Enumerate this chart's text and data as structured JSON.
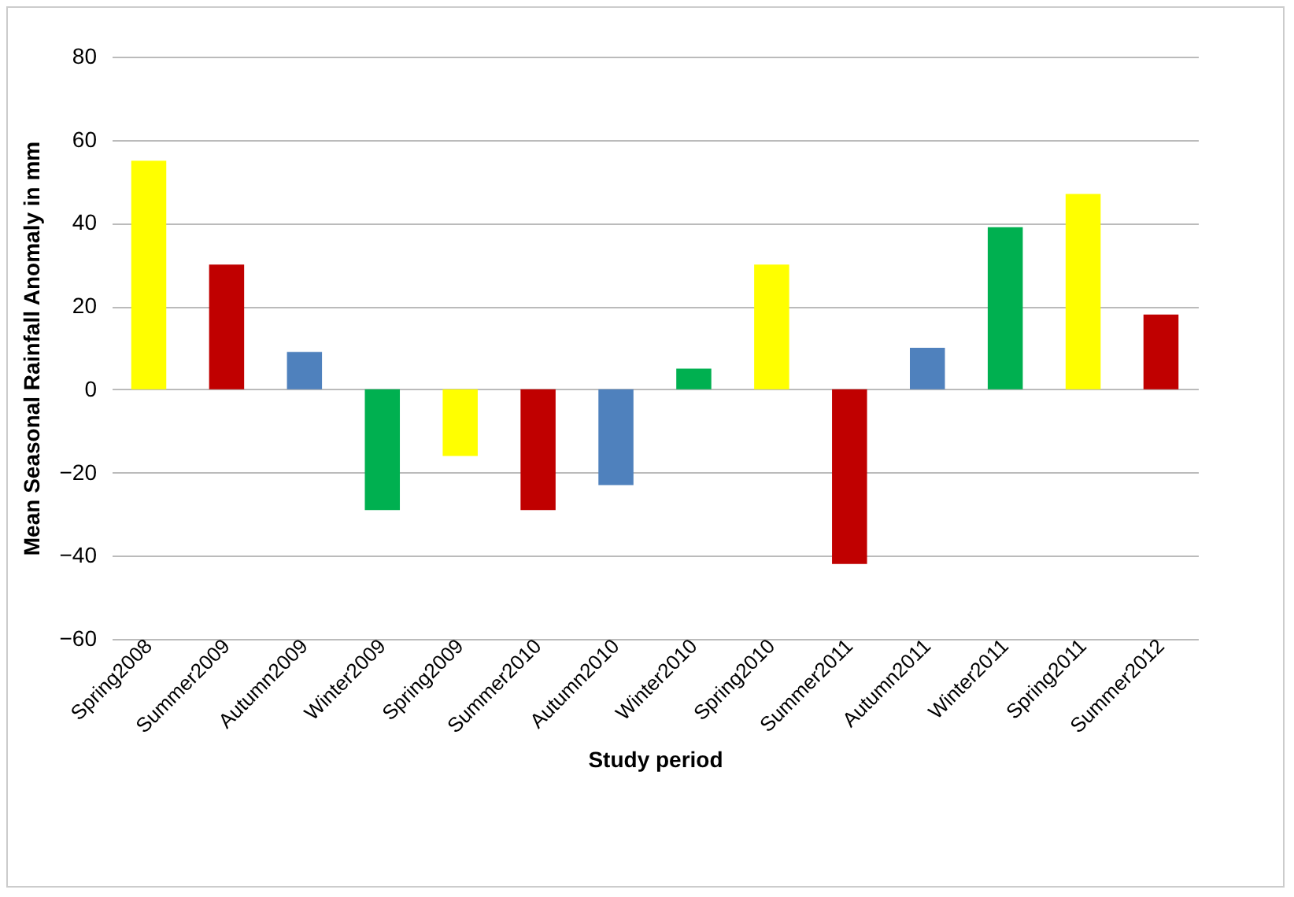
{
  "chart_data": {
    "type": "bar",
    "xlabel": "Study period",
    "ylabel": "Mean Seasonal Rainfall Anomaly in mm",
    "categories": [
      "Spring2008",
      "Summer2009",
      "Autumn2009",
      "Winter2009",
      "Spring2009",
      "Summer2010",
      "Autumn2010",
      "Winter2010",
      "Spring2010",
      "Summer2011",
      "Autumn2011",
      "Winter2011",
      "Spring2011",
      "Summer2012"
    ],
    "values": [
      55,
      30,
      9,
      -29,
      -16,
      -29,
      -23,
      5,
      30,
      -42,
      10,
      39,
      47,
      18
    ],
    "colors": [
      "#ffff00",
      "#c00000",
      "#4f81bd",
      "#00b050",
      "#ffff00",
      "#c00000",
      "#4f81bd",
      "#00b050",
      "#ffff00",
      "#c00000",
      "#4f81bd",
      "#00b050",
      "#ffff00",
      "#c00000"
    ],
    "ylim": [
      -60,
      80
    ],
    "yticks": [
      -60,
      -40,
      -20,
      0,
      20,
      40,
      60,
      80
    ],
    "grid": "y"
  }
}
